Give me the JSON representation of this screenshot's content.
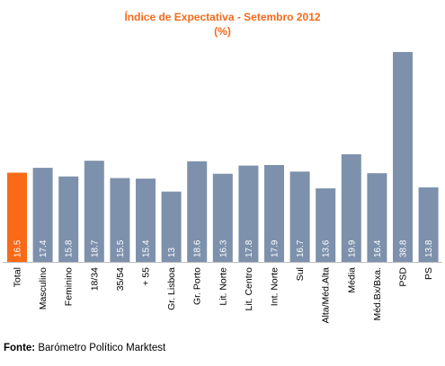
{
  "chart_data": {
    "type": "bar",
    "title": "Índice de Expectativa - Setembro 2012",
    "subtitle": "(%)",
    "xlabel": "",
    "ylabel": "",
    "categories": [
      "Total",
      "Masculino",
      "Feminino",
      "18/34",
      "35/54",
      "+ 55",
      "Gr. Lisboa",
      "Gr. Porto",
      "Lit. Norte",
      "Lit. Centro",
      "Int. Norte",
      "Sul",
      "Alta/Méd.Alta",
      "Média",
      "Méd.Bx/Bxa.",
      "PSD",
      "PS"
    ],
    "series": [
      {
        "values": [
          16.5,
          17.4,
          15.8,
          18.7,
          15.5,
          15.4,
          13,
          18.6,
          16.3,
          17.8,
          17.9,
          16.7,
          13.6,
          19.9,
          16.4,
          38.8,
          13.8
        ]
      }
    ],
    "value_labels": [
      "16.5",
      "17.4",
      "15.8",
      "18.7",
      "15.5",
      "15.4",
      "13",
      "18.6",
      "16.3",
      "17.8",
      "17.9",
      "16.7",
      "13.6",
      "19.9",
      "16.4",
      "38.8",
      "13.8"
    ],
    "ylim": [
      0,
      40
    ],
    "grid": false,
    "legend": "none",
    "colors": {
      "highlight": "#fa6a16",
      "bar": "#7d91ac",
      "title": "#f26b1d"
    },
    "highlight_index": 0
  },
  "source": {
    "label": "Fonte:",
    "text": " Barómetro Político Marktest"
  }
}
